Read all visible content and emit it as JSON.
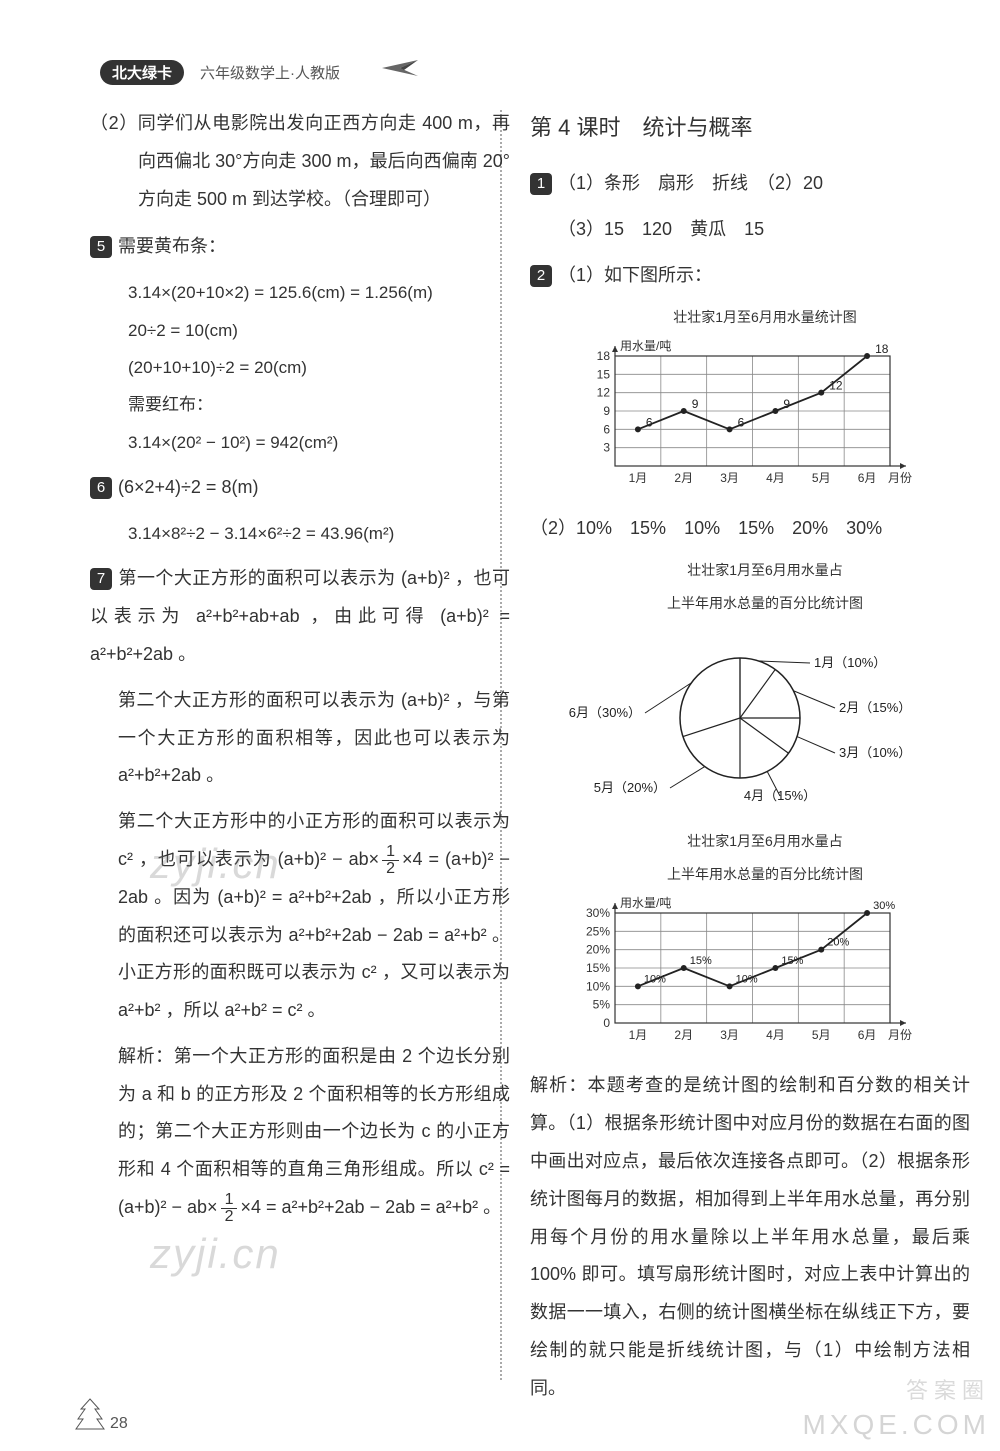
{
  "header": {
    "badge": "北大绿卡",
    "subtitle": "六年级数学上·人教版"
  },
  "left": {
    "q2": "（2）同学们从电影院出发向正西方向走 400 m，再向西偏北 30°方向走 300 m，最后向西偏南 20°方向走 500 m 到达学校。（合理即可）",
    "q5_label": "5",
    "q5_text": "需要黄布条：",
    "q5_calc1": "3.14×(20+10×2) = 125.6(cm) = 1.256(m)",
    "q5_calc2": "20÷2 = 10(cm)",
    "q5_calc3": "(20+10+10)÷2 = 20(cm)",
    "q5_text2": "需要红布：",
    "q5_calc4": "3.14×(20² − 10²) = 942(cm²)",
    "q6_label": "6",
    "q6_calc1": "(6×2+4)÷2 = 8(m)",
    "q6_calc2": "3.14×8²÷2 − 3.14×6²÷2 = 43.96(m²)",
    "q7_label": "7",
    "q7_p1": "第一个大正方形的面积可以表示为 (a+b)² ，也可以表示为 a²+b²+ab+ab ，由此可得 (a+b)² = a²+b²+2ab 。",
    "q7_p2": "第二个大正方形的面积可以表示为 (a+b)² ，与第一个大正方形的面积相等，因此也可以表示为 a²+b²+2ab 。",
    "q7_p3_a": "第二个大正方形中的小正方形的面积可以表示为 c² ，也可以表示为 (a+b)² − ab×",
    "q7_p3_b": "×4 = (a+b)² − 2ab 。因为 (a+b)² = a²+b²+2ab ，所以小正方形的面积还可以表示为 a²+b²+2ab − 2ab = a²+b² 。小正方形的面积既可以表示为 c² ，又可以表示为 a²+b² ，所以 a²+b² = c² 。",
    "q7_p4_a": "解析：第一个大正方形的面积是由 2 个边长分别为 a 和 b 的正方形及 2 个面积相等的长方形组成的；第二个大正方形则由一个边长为 c 的小正方形和 4 个面积相等的直角三角形组成。所以 c² = (a+b)² − ab×",
    "q7_p4_b": "×4 = a²+b²+2ab − 2ab = a²+b² 。",
    "frac_n": "1",
    "frac_d": "2"
  },
  "right": {
    "lesson_title": "第 4 课时　统计与概率",
    "q1_label": "1",
    "q1_a": "（1）条形　扇形　折线　（2）20",
    "q1_b": "（3）15　120　黄瓜　15",
    "q2_label": "2",
    "q2_a": "（1）如下图所示：",
    "chart1_title": "壮壮家1月至6月用水量统计图",
    "chart1_ylabel": "用水量/吨",
    "chart1_xlabel": "月份",
    "chart1_x": [
      "1月",
      "2月",
      "3月",
      "4月",
      "5月",
      "6月"
    ],
    "chart1_y": [
      6,
      9,
      6,
      9,
      12,
      18
    ],
    "chart1_labels": [
      "6",
      "9",
      "6",
      "9",
      "12",
      "18"
    ],
    "chart1_yticks": [
      0,
      3,
      6,
      9,
      12,
      15,
      18
    ],
    "chart1_grid": "#888888",
    "chart1_line": "#222222",
    "q2_b": "（2）10%　15%　10%　15%　20%　30%",
    "pie_title1": "壮壮家1月至6月用水量占",
    "pie_title2": "上半年用水总量的百分比统计图",
    "pie_slices": [
      {
        "label": "1月（10%）",
        "pct": 10,
        "color": "#ffffff"
      },
      {
        "label": "2月（15%）",
        "pct": 15,
        "color": "#ffffff"
      },
      {
        "label": "3月（10%）",
        "pct": 10,
        "color": "#ffffff"
      },
      {
        "label": "4月（15%）",
        "pct": 15,
        "color": "#ffffff"
      },
      {
        "label": "5月（20%）",
        "pct": 20,
        "color": "#ffffff"
      },
      {
        "label": "6月（30%）",
        "pct": 30,
        "color": "#ffffff"
      }
    ],
    "chart3_title1": "壮壮家1月至6月用水量占",
    "chart3_title2": "上半年用水总量的百分比统计图",
    "chart3_ylabel": "用水量/吨",
    "chart3_xlabel": "月份",
    "chart3_x": [
      "1月",
      "2月",
      "3月",
      "4月",
      "5月",
      "6月"
    ],
    "chart3_y": [
      10,
      15,
      10,
      15,
      20,
      30
    ],
    "chart3_labels": [
      "10%",
      "15%",
      "10%",
      "15%",
      "20%",
      "30%"
    ],
    "chart3_yticks": [
      0,
      5,
      10,
      15,
      20,
      25,
      30
    ],
    "chart3_yticklabels": [
      "0",
      "5%",
      "10%",
      "15%",
      "20%",
      "25%",
      "30%"
    ],
    "analysis": "解析：本题考查的是统计图的绘制和百分数的相关计算。（1）根据条形统计图中对应月份的数据在右面的图中画出对应点，最后依次连接各点即可。（2）根据条形统计图每月的数据，相加得到上半年用水总量，再分别用每个月份的用水量除以上半年用水总量，最后乘 100% 即可。填写扇形统计图时，对应上表中计算出的数据一一填入，右侧的统计图横坐标在纵线正下方，要绘制的就只能是折线统计图，与（1）中绘制方法相同。"
  },
  "page_number": "28",
  "watermark_site": "MXQE.COM",
  "watermark_cn": "答案圈",
  "watermark_mid": "zyji.cn"
}
